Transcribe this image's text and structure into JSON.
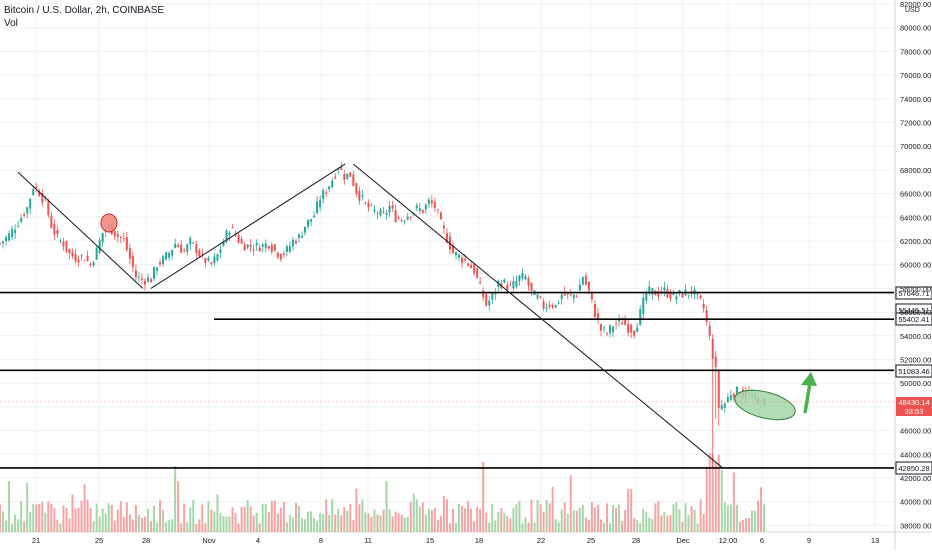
{
  "header": {
    "title": "Bitcoin / U.S. Dollar, 2h, COINBASE",
    "vol_label": "Vol"
  },
  "chart_data": {
    "type": "candlestick",
    "title": "Bitcoin / U.S. Dollar, 2h, COINBASE",
    "price_axis": {
      "unit_label": "USD",
      "range": [
        37500,
        82500
      ],
      "ticks": [
        "82000.00",
        "80000.00",
        "78000.00",
        "76000.00",
        "74000.00",
        "72000.00",
        "70000.00",
        "68000.00",
        "66000.00",
        "64000.00",
        "62000.00",
        "60000.00",
        "58000.00",
        "56000.00",
        "54000.00",
        "52000.00",
        "50000.00",
        "48000.00",
        "46000.00",
        "44000.00",
        "42000.00",
        "40000.00",
        "38000.00"
      ]
    },
    "time_axis": {
      "ticks": [
        "21",
        "25",
        "28",
        "Nov",
        "4",
        "8",
        "11",
        "15",
        "18",
        "22",
        "25",
        "28",
        "Dec",
        "12:00",
        "6",
        "9",
        "13"
      ]
    },
    "horizontal_levels": [
      {
        "price": 57646.71,
        "label": "57646.71"
      },
      {
        "price": 55445.51,
        "label": "55445.51"
      },
      {
        "price": 55402.41,
        "label": "55402.41"
      },
      {
        "price": 51083.46,
        "label": "51083.46"
      },
      {
        "price": 42850.28,
        "label": "42850.28"
      }
    ],
    "last_price": {
      "label": "48430.14",
      "countdown": "33:53",
      "color": "#ef5350"
    },
    "price_path": [
      [
        0,
        61800
      ],
      [
        3,
        62500
      ],
      [
        6,
        63600
      ],
      [
        9,
        64800
      ],
      [
        11,
        66600
      ],
      [
        13,
        66100
      ],
      [
        15,
        65200
      ],
      [
        17,
        63300
      ],
      [
        19,
        62200
      ],
      [
        21,
        61800
      ],
      [
        23,
        60900
      ],
      [
        25,
        60600
      ],
      [
        28,
        60600
      ],
      [
        30,
        60000
      ],
      [
        32,
        61200
      ],
      [
        34,
        62700
      ],
      [
        36,
        63200
      ],
      [
        39,
        62400
      ],
      [
        41,
        62100
      ],
      [
        43,
        60500
      ],
      [
        45,
        59000
      ],
      [
        47,
        58700
      ],
      [
        50,
        58800
      ],
      [
        52,
        60000
      ],
      [
        54,
        60400
      ],
      [
        56,
        61000
      ],
      [
        58,
        61800
      ],
      [
        61,
        61100
      ],
      [
        63,
        61900
      ],
      [
        65,
        61300
      ],
      [
        67,
        60500
      ],
      [
        70,
        60000
      ],
      [
        72,
        60800
      ],
      [
        74,
        62000
      ],
      [
        76,
        63100
      ],
      [
        78,
        62500
      ],
      [
        80,
        61700
      ],
      [
        82,
        61600
      ],
      [
        84,
        61500
      ],
      [
        87,
        61600
      ],
      [
        89,
        61800
      ],
      [
        91,
        61200
      ],
      [
        93,
        60800
      ],
      [
        95,
        61200
      ],
      [
        97,
        62000
      ],
      [
        99,
        62300
      ],
      [
        101,
        63300
      ],
      [
        104,
        64200
      ],
      [
        106,
        65600
      ],
      [
        108,
        66300
      ],
      [
        110,
        67200
      ],
      [
        112,
        68300
      ],
      [
        114,
        67500
      ],
      [
        116,
        67600
      ],
      [
        118,
        66200
      ],
      [
        121,
        65100
      ],
      [
        123,
        64600
      ],
      [
        125,
        64400
      ],
      [
        127,
        64100
      ],
      [
        129,
        64900
      ],
      [
        131,
        64000
      ],
      [
        133,
        63800
      ],
      [
        135,
        64200
      ],
      [
        138,
        64700
      ],
      [
        140,
        64600
      ],
      [
        142,
        65300
      ],
      [
        144,
        64900
      ],
      [
        146,
        63400
      ],
      [
        148,
        62200
      ],
      [
        150,
        61000
      ],
      [
        152,
        60700
      ],
      [
        155,
        60100
      ],
      [
        157,
        59500
      ],
      [
        159,
        58000
      ],
      [
        161,
        56600
      ],
      [
        163,
        57300
      ],
      [
        165,
        58500
      ],
      [
        167,
        58400
      ],
      [
        169,
        58000
      ],
      [
        172,
        58900
      ],
      [
        174,
        58900
      ],
      [
        176,
        57600
      ],
      [
        178,
        57200
      ],
      [
        180,
        56500
      ],
      [
        182,
        56700
      ],
      [
        184,
        56500
      ],
      [
        186,
        57500
      ],
      [
        189,
        57300
      ],
      [
        191,
        57600
      ],
      [
        193,
        59000
      ],
      [
        195,
        57700
      ],
      [
        197,
        55900
      ],
      [
        199,
        54500
      ],
      [
        201,
        54200
      ],
      [
        203,
        54900
      ],
      [
        206,
        55200
      ],
      [
        208,
        54700
      ],
      [
        210,
        54400
      ],
      [
        212,
        55900
      ],
      [
        214,
        57700
      ],
      [
        216,
        57700
      ],
      [
        218,
        57600
      ],
      [
        220,
        57800
      ],
      [
        223,
        57300
      ],
      [
        225,
        57500
      ],
      [
        227,
        57600
      ],
      [
        229,
        57700
      ],
      [
        231,
        57300
      ],
      [
        233,
        56300
      ],
      [
        235,
        53800
      ],
      [
        237,
        51000
      ],
      [
        238,
        48000
      ],
      [
        240,
        48300
      ],
      [
        242,
        49200
      ],
      [
        245,
        49300
      ],
      [
        247,
        49100
      ],
      [
        249,
        48900
      ],
      [
        251,
        48200
      ],
      [
        253,
        48400
      ]
    ],
    "trend_lines": [
      {
        "from": [
          0,
          67800
        ],
        "to": [
          44,
          58000
        ]
      },
      {
        "from": [
          44,
          58000
        ],
        "to": [
          111,
          68500
        ]
      },
      {
        "from": [
          111,
          68500
        ],
        "to": [
          236,
          42850
        ]
      }
    ],
    "annotations": [
      {
        "shape": "ellipse",
        "center": [
          33,
          63600
        ],
        "color": "#ef5350"
      },
      {
        "shape": "ellipse",
        "center": [
          245,
          48500
        ],
        "color": "#81c784"
      },
      {
        "shape": "arrow-up",
        "from": [
          265,
          47600
        ],
        "to": [
          269,
          50800
        ],
        "color": "#4caf50"
      }
    ],
    "volume": {
      "note": "per-bar volume shown as relative fraction of panel height",
      "x_range": [
        0,
        253
      ]
    },
    "colors": {
      "up": "#26a69a",
      "down": "#ef5350",
      "vol_up": "#a5d6a7",
      "vol_down": "#f5a3a3",
      "grid": "#eef0f4"
    }
  }
}
